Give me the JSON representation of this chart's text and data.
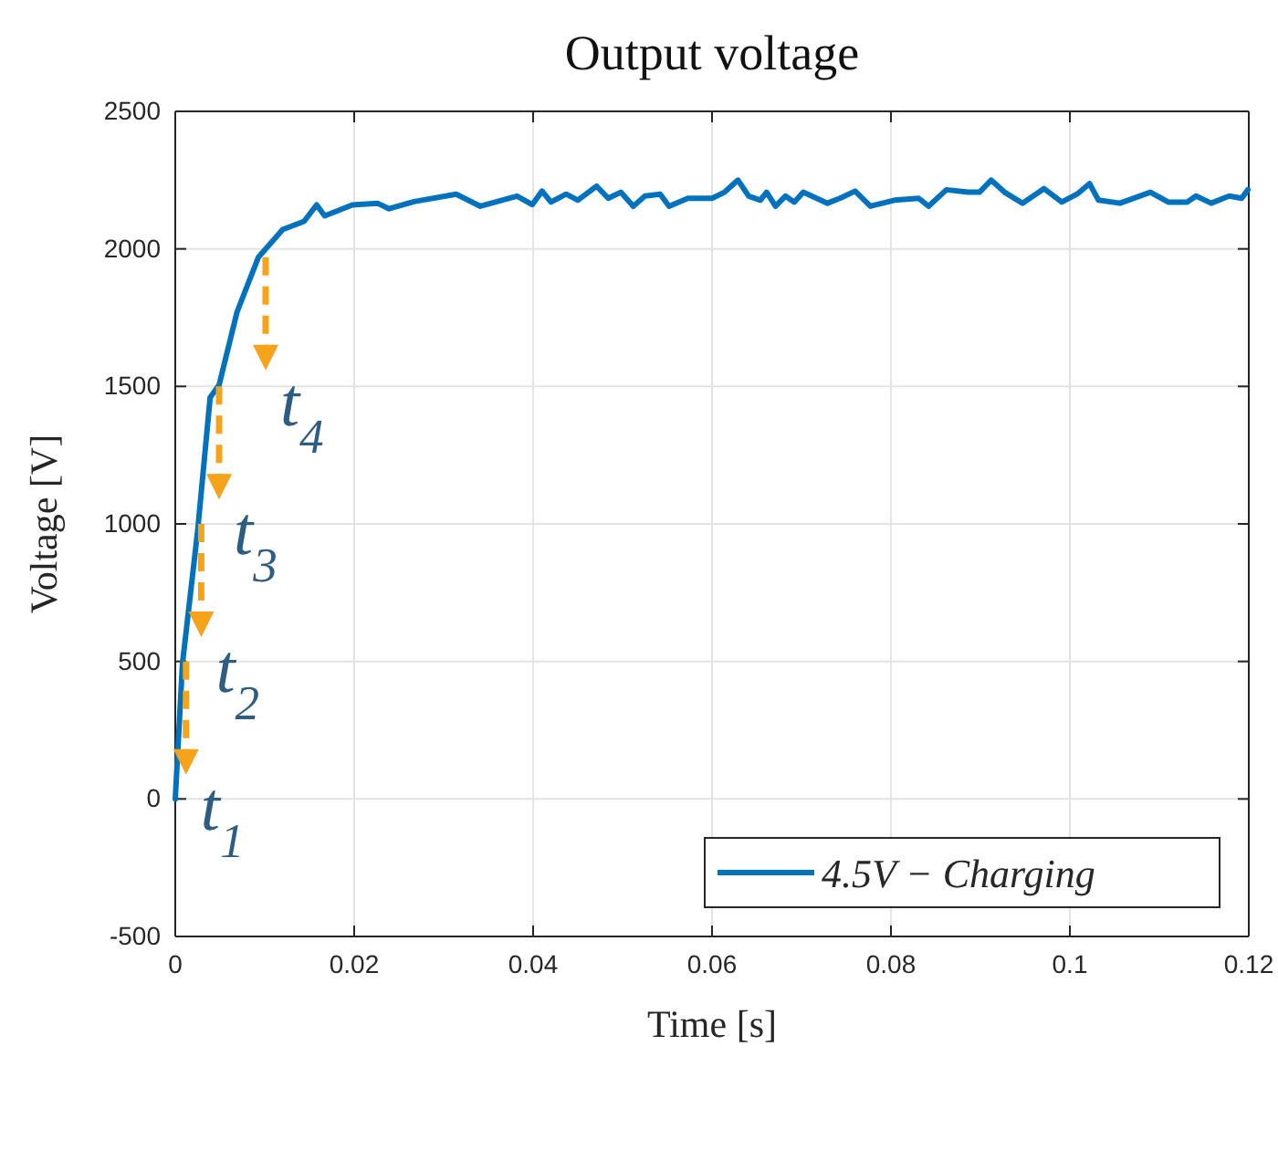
{
  "chart_data": {
    "type": "line",
    "title": "Output voltage",
    "xlabel": "Time [s]",
    "ylabel": "Voltage [V]",
    "xlim": [
      0,
      0.12
    ],
    "xticks": [
      0,
      0.02,
      0.04,
      0.06,
      0.08,
      0.1,
      0.12
    ],
    "ylim": [
      -500,
      2500
    ],
    "yticks": [
      -500,
      0,
      500,
      1000,
      1500,
      2000,
      2500
    ],
    "grid": true,
    "legend": "bottom right",
    "line_style": "solid",
    "marker": "none",
    "annotations": [
      {
        "text": "t$_{1}$",
        "x": 0.0012,
        "y": 500
      },
      {
        "text": "t$_{2}$",
        "x": 0.0029,
        "y": 1000
      },
      {
        "text": "t$_{3}$",
        "x": 0.0049,
        "y": 1500
      },
      {
        "text": "t$_{4}$",
        "x": 0.0101,
        "y": 1970
      }
    ],
    "series": [
      {
        "name": "4.5V − Charging",
        "color": "#0072bd",
        "x": [
          0,
          0.0008,
          0.0025,
          0.0039,
          0.0049,
          0.0069,
          0.0093,
          0.012,
          0.0144,
          0.0158,
          0.0167,
          0.0198,
          0.0226,
          0.0239,
          0.0267,
          0.0314,
          0.0341,
          0.0382,
          0.0399,
          0.041,
          0.042,
          0.0437,
          0.045,
          0.0471,
          0.0484,
          0.0498,
          0.0512,
          0.0525,
          0.0542,
          0.0552,
          0.0573,
          0.06,
          0.0614,
          0.0629,
          0.0641,
          0.0654,
          0.0661,
          0.0671,
          0.0682,
          0.0692,
          0.0702,
          0.0729,
          0.0743,
          0.076,
          0.0777,
          0.0804,
          0.0831,
          0.0842,
          0.0862,
          0.0886,
          0.0899,
          0.0912,
          0.0927,
          0.0947,
          0.0971,
          0.0991,
          0.1008,
          0.1022,
          0.1032,
          0.1056,
          0.109,
          0.111,
          0.1131,
          0.1141,
          0.1158,
          0.1178,
          0.1192,
          0.1199
        ],
        "values": [
          0,
          490,
          975,
          1460,
          1505,
          1770,
          1970,
          2070,
          2100,
          2160,
          2120,
          2160,
          2166,
          2146,
          2172,
          2199,
          2155,
          2192,
          2161,
          2210,
          2170,
          2199,
          2177,
          2228,
          2184,
          2206,
          2155,
          2192,
          2199,
          2155,
          2184,
          2184,
          2206,
          2250,
          2192,
          2177,
          2206,
          2155,
          2192,
          2170,
          2206,
          2166,
          2184,
          2210,
          2155,
          2177,
          2184,
          2155,
          2215,
          2206,
          2206,
          2250,
          2206,
          2166,
          2219,
          2170,
          2199,
          2237,
          2177,
          2166,
          2206,
          2170,
          2170,
          2192,
          2166,
          2192,
          2184,
          2215
        ]
      }
    ]
  }
}
